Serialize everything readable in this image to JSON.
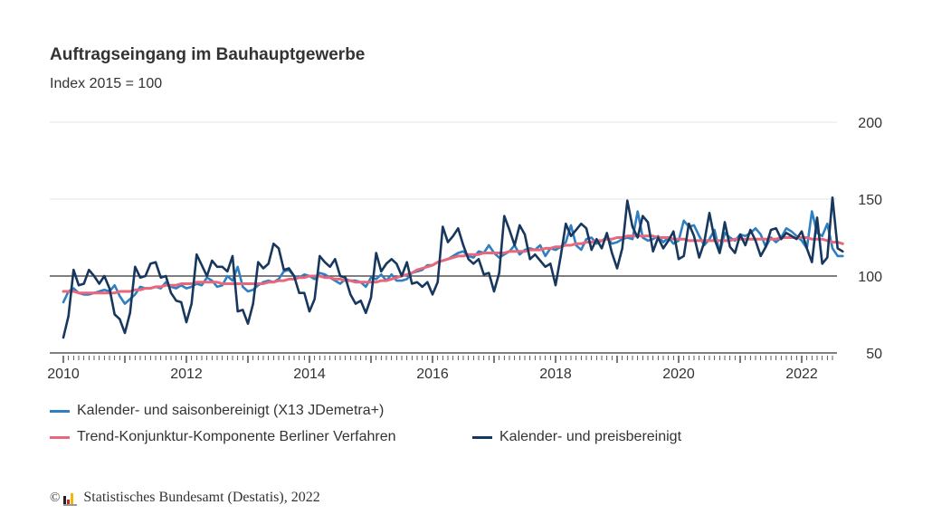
{
  "chart_data": {
    "type": "line",
    "title": "Auftragseingang im Bauhauptgewerbe",
    "subtitle": "Index 2015 = 100",
    "xlabel": "",
    "ylabel": "",
    "x_start": "2010-01",
    "x_frequency": "monthly",
    "x_tick_labels": [
      "2010",
      "2012",
      "2014",
      "2016",
      "2018",
      "2020",
      "2022"
    ],
    "x_range": [
      2010.0,
      2022.5
    ],
    "y_ticks": [
      50,
      100,
      150,
      200
    ],
    "ylim": [
      50,
      200
    ],
    "reference_line": 100,
    "grid": "horizontal",
    "legend_position": "bottom",
    "series": [
      {
        "name": "Kalender- und saisonbereinigt (X13 JDemetra+)",
        "color": "#2f7fc1",
        "values": [
          83,
          90,
          92,
          89,
          88,
          88,
          89,
          90,
          91,
          90,
          94,
          87,
          82,
          85,
          88,
          93,
          92,
          92,
          93,
          92,
          96,
          93,
          92,
          94,
          92,
          93,
          95,
          94,
          99,
          97,
          93,
          94,
          100,
          97,
          106,
          93,
          90,
          91,
          94,
          96,
          97,
          96,
          98,
          103,
          104,
          100,
          99,
          101,
          100,
          98,
          102,
          101,
          99,
          97,
          95,
          98,
          97,
          97,
          96,
          93,
          99,
          98,
          101,
          97,
          101,
          97,
          97,
          98,
          102,
          103,
          104,
          107,
          107,
          109,
          110,
          111,
          113,
          115,
          116,
          113,
          112,
          116,
          115,
          120,
          115,
          112,
          114,
          116,
          120,
          114,
          117,
          118,
          117,
          120,
          113,
          118,
          117,
          119,
          122,
          133,
          120,
          117,
          124,
          125,
          121,
          123,
          125,
          121,
          122,
          124,
          125,
          124,
          142,
          125,
          123,
          124,
          126,
          122,
          125,
          121,
          123,
          136,
          132,
          133,
          126,
          120,
          124,
          130,
          115,
          128,
          125,
          123,
          127,
          126,
          128,
          131,
          127,
          119,
          125,
          122,
          125,
          131,
          129,
          126,
          123,
          118,
          142,
          128,
          126,
          134,
          118,
          113,
          113
        ]
      },
      {
        "name": "Trend-Konjunktur-Komponente Berliner Verfahren",
        "color": "#e8677a",
        "values": [
          90,
          90,
          90,
          89,
          89,
          89,
          89,
          89,
          89,
          89,
          89,
          90,
          90,
          90,
          91,
          91,
          92,
          92,
          93,
          93,
          94,
          94,
          94,
          95,
          95,
          95,
          96,
          96,
          96,
          96,
          96,
          95,
          95,
          95,
          95,
          95,
          95,
          95,
          95,
          95,
          96,
          96,
          97,
          97,
          98,
          98,
          99,
          99,
          100,
          100,
          100,
          99,
          99,
          98,
          98,
          97,
          97,
          96,
          96,
          96,
          96,
          96,
          97,
          97,
          98,
          99,
          100,
          101,
          102,
          104,
          105,
          106,
          107,
          109,
          110,
          111,
          112,
          113,
          113,
          114,
          114,
          114,
          115,
          115,
          115,
          115,
          115,
          116,
          116,
          116,
          116,
          117,
          117,
          117,
          118,
          118,
          119,
          119,
          120,
          120,
          121,
          121,
          122,
          122,
          123,
          123,
          124,
          124,
          125,
          125,
          126,
          126,
          126,
          126,
          126,
          126,
          125,
          125,
          125,
          124,
          124,
          124,
          123,
          123,
          123,
          123,
          123,
          123,
          123,
          123,
          123,
          124,
          124,
          124,
          124,
          124,
          124,
          124,
          124,
          124,
          125,
          125,
          125,
          125,
          125,
          125,
          124,
          124,
          124,
          123,
          122,
          122,
          121
        ]
      },
      {
        "name": "Kalender- und preisbereinigt",
        "color": "#17375e",
        "values": [
          60,
          74,
          104,
          94,
          95,
          104,
          100,
          95,
          100,
          92,
          75,
          72,
          63,
          76,
          106,
          99,
          100,
          108,
          109,
          99,
          100,
          89,
          84,
          83,
          70,
          82,
          114,
          107,
          100,
          110,
          106,
          106,
          103,
          113,
          77,
          78,
          69,
          82,
          109,
          105,
          108,
          121,
          118,
          104,
          105,
          100,
          89,
          89,
          77,
          85,
          113,
          109,
          106,
          111,
          100,
          99,
          88,
          82,
          84,
          76,
          86,
          115,
          103,
          108,
          111,
          108,
          100,
          109,
          95,
          96,
          93,
          96,
          88,
          96,
          132,
          122,
          126,
          131,
          120,
          111,
          108,
          111,
          101,
          102,
          90,
          102,
          139,
          130,
          120,
          133,
          127,
          111,
          114,
          110,
          106,
          108,
          94,
          113,
          134,
          126,
          130,
          134,
          131,
          117,
          124,
          118,
          128,
          115,
          105,
          118,
          149,
          132,
          125,
          139,
          135,
          116,
          125,
          118,
          123,
          129,
          111,
          113,
          134,
          126,
          112,
          122,
          141,
          124,
          115,
          135,
          119,
          115,
          127,
          120,
          130,
          123,
          113,
          119,
          130,
          131,
          124,
          128,
          126,
          124,
          129,
          118,
          109,
          138,
          108,
          112,
          151,
          118,
          116
        ]
      }
    ],
    "source": "Statistisches Bundesamt (Destatis), 2022"
  },
  "legend": {
    "item_1": "Kalender- und saisonbereinigt (X13 JDemetra+)",
    "item_2": "Trend-Konjunktur-Komponente Berliner Verfahren",
    "item_3": "Kalender- und preisbereinigt"
  },
  "footer": {
    "copyright_symbol": "©",
    "text": "Statistisches Bundesamt (Destatis), 2022"
  }
}
